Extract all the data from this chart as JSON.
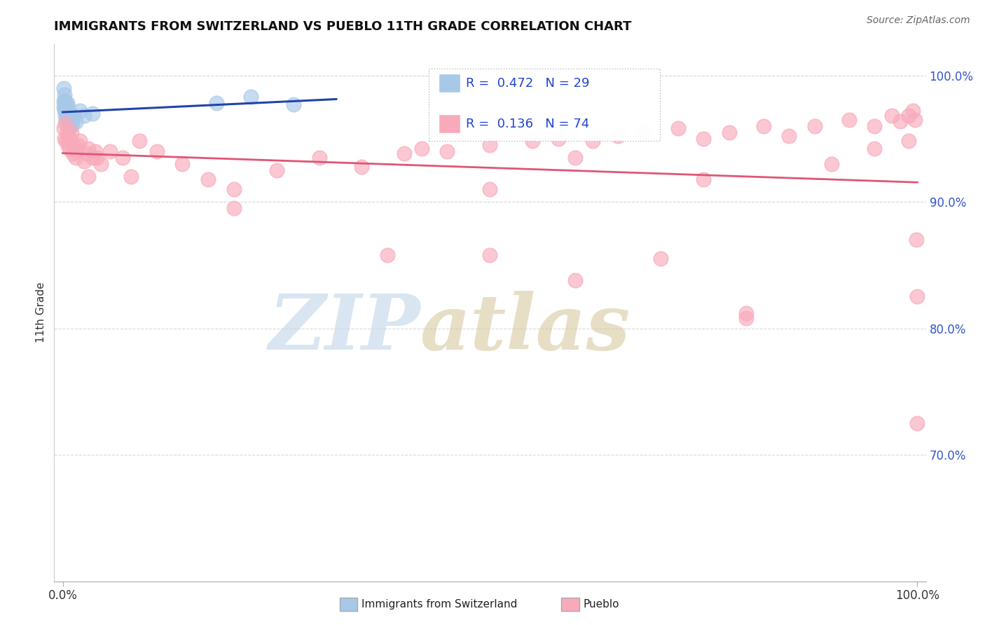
{
  "title": "IMMIGRANTS FROM SWITZERLAND VS PUEBLO 11TH GRADE CORRELATION CHART",
  "source_text": "Source: ZipAtlas.com",
  "ylabel": "11th Grade",
  "blue_color": "#a8c8e8",
  "blue_edge_color": "#a8c8e8",
  "blue_line_color": "#2244aa",
  "pink_color": "#f8aabb",
  "pink_edge_color": "#f8aabb",
  "pink_line_color": "#e05575",
  "legend_text_color": "#2244cc",
  "watermark_zip_color": "#c0d4e8",
  "watermark_atlas_color": "#d8c8a0",
  "grid_color": "#d8d8d8",
  "background_color": "#ffffff",
  "right_tick_color": "#3355cc",
  "axis_label_color": "#333333",
  "blue_x": [
    0.001,
    0.001,
    0.001,
    0.002,
    0.002,
    0.002,
    0.003,
    0.003,
    0.003,
    0.004,
    0.004,
    0.005,
    0.005,
    0.006,
    0.006,
    0.007,
    0.007,
    0.008,
    0.009,
    0.01,
    0.011,
    0.013,
    0.015,
    0.02,
    0.025,
    0.035,
    0.18,
    0.22,
    0.27
  ],
  "blue_y": [
    0.98,
    0.975,
    0.99,
    0.985,
    0.978,
    0.972,
    0.98,
    0.975,
    0.968,
    0.972,
    0.965,
    0.978,
    0.968,
    0.975,
    0.962,
    0.97,
    0.958,
    0.965,
    0.96,
    0.968,
    0.962,
    0.968,
    0.963,
    0.972,
    0.968,
    0.97,
    0.978,
    0.983,
    0.977
  ],
  "pink_x": [
    0.001,
    0.002,
    0.003,
    0.004,
    0.005,
    0.006,
    0.007,
    0.008,
    0.009,
    0.01,
    0.012,
    0.013,
    0.015,
    0.017,
    0.018,
    0.02,
    0.025,
    0.028,
    0.03,
    0.035,
    0.038,
    0.04,
    0.045,
    0.055,
    0.07,
    0.09,
    0.11,
    0.14,
    0.17,
    0.2,
    0.25,
    0.3,
    0.35,
    0.4,
    0.42,
    0.45,
    0.5,
    0.55,
    0.58,
    0.62,
    0.65,
    0.68,
    0.72,
    0.75,
    0.78,
    0.82,
    0.85,
    0.88,
    0.92,
    0.95,
    0.97,
    0.98,
    0.99,
    0.995,
    0.997,
    0.999,
    0.9995,
    0.9998,
    0.5,
    0.6,
    0.7,
    0.8,
    0.5,
    0.03,
    0.08,
    0.2,
    0.38,
    0.6,
    0.8,
    0.95,
    0.99,
    0.9,
    0.75
  ],
  "pink_y": [
    0.958,
    0.95,
    0.962,
    0.948,
    0.955,
    0.945,
    0.952,
    0.942,
    0.948,
    0.955,
    0.938,
    0.945,
    0.935,
    0.94,
    0.945,
    0.948,
    0.932,
    0.938,
    0.942,
    0.935,
    0.94,
    0.935,
    0.93,
    0.94,
    0.935,
    0.948,
    0.94,
    0.93,
    0.918,
    0.91,
    0.925,
    0.935,
    0.928,
    0.938,
    0.942,
    0.94,
    0.945,
    0.948,
    0.95,
    0.948,
    0.952,
    0.955,
    0.958,
    0.95,
    0.955,
    0.96,
    0.952,
    0.96,
    0.965,
    0.96,
    0.968,
    0.964,
    0.968,
    0.972,
    0.965,
    0.87,
    0.825,
    0.725,
    0.858,
    0.935,
    0.855,
    0.808,
    0.91,
    0.92,
    0.92,
    0.895,
    0.858,
    0.838,
    0.812,
    0.942,
    0.948,
    0.93,
    0.918
  ],
  "blue_trendline_x": [
    0.0,
    0.3
  ],
  "blue_trendline_y": [
    0.958,
    0.985
  ],
  "pink_trendline_x": [
    0.0,
    1.0
  ],
  "pink_trendline_y": [
    0.924,
    0.945
  ],
  "ylim_min": 0.6,
  "ylim_max": 1.025,
  "xlim_min": -0.01,
  "xlim_max": 1.01,
  "ytick_positions": [
    0.7,
    0.8,
    0.9,
    1.0
  ],
  "ytick_labels": [
    "70.0%",
    "80.0%",
    "90.0%",
    "100.0%"
  ],
  "xtick_positions": [
    0.0,
    1.0
  ],
  "xtick_labels": [
    "0.0%",
    "100.0%"
  ]
}
